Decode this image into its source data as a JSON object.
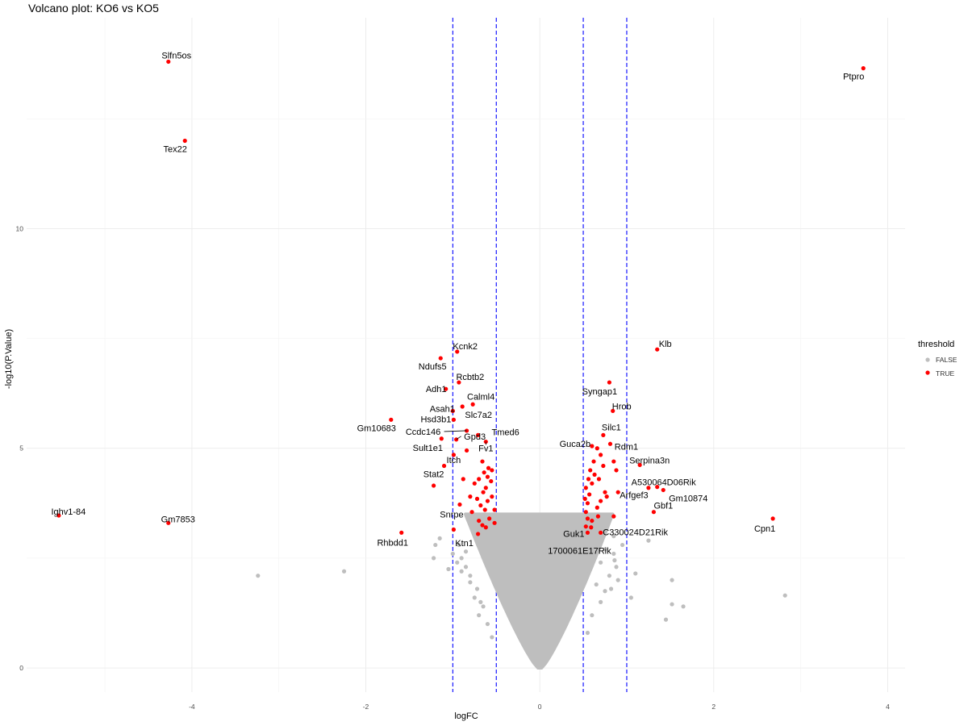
{
  "chart_data": {
    "type": "scatter",
    "title": "Volcano plot: KO6 vs KO5",
    "xlabel": "logFC",
    "ylabel": "-log10(P.Value)",
    "xlim": [
      -5.9,
      4.2
    ],
    "ylim": [
      -0.55,
      14.8
    ],
    "x_ticks": [
      -4,
      -2,
      0,
      2,
      4
    ],
    "y_ticks": [
      0,
      5,
      10
    ],
    "grid": true,
    "legend_position": "right",
    "legend": {
      "title": "threshold",
      "entries": [
        {
          "label": "FALSE",
          "color": "#bebebe"
        },
        {
          "label": "TRUE",
          "color": "#ff0000"
        }
      ]
    },
    "vlines": [
      {
        "x": -1.0,
        "color": "#0000ff",
        "style": "dashed"
      },
      {
        "x": -0.5,
        "color": "#0000ff",
        "style": "dashed"
      },
      {
        "x": 0.5,
        "color": "#0000ff",
        "style": "dashed"
      },
      {
        "x": 1.0,
        "color": "#0000ff",
        "style": "dashed"
      }
    ],
    "colors": {
      "significant": "#ff0000",
      "nonsignificant": "#bebebe",
      "threshold_lines": "#0000ff"
    },
    "significant_genes": [
      {
        "label": "Slfn5os",
        "x": -4.27,
        "y": 13.8
      },
      {
        "label": "Ptpro",
        "x": 3.72,
        "y": 13.65
      },
      {
        "label": "Tex22",
        "x": -4.08,
        "y": 12.0
      },
      {
        "label": "Klb",
        "x": 1.35,
        "y": 7.25
      },
      {
        "label": "Kcnk2",
        "x": -0.95,
        "y": 7.2
      },
      {
        "label": "Ndufs5",
        "x": -1.14,
        "y": 7.05
      },
      {
        "label": "Rcbtb2",
        "x": -0.93,
        "y": 6.5
      },
      {
        "label": "Adh1",
        "x": -1.08,
        "y": 6.35
      },
      {
        "label": "Syngap1",
        "x": 0.8,
        "y": 6.5
      },
      {
        "label": "Calml4",
        "x": -0.77,
        "y": 6.0
      },
      {
        "label": "Asah1",
        "x": -1.0,
        "y": 5.85
      },
      {
        "label": "Hrob",
        "x": 0.84,
        "y": 5.85
      },
      {
        "label": "Slc7a2",
        "x": -0.89,
        "y": 5.95
      },
      {
        "label": "Hsd3b1",
        "x": -0.99,
        "y": 5.65
      },
      {
        "label": "Gm10683",
        "x": -1.71,
        "y": 5.65
      },
      {
        "label": "Tmed6",
        "x": -0.71,
        "y": 5.3
      },
      {
        "label": "Ccdc146",
        "x": -0.84,
        "y": 5.4
      },
      {
        "label": "Silc1",
        "x": 0.73,
        "y": 5.3
      },
      {
        "label": "Gpd3",
        "x": -0.96,
        "y": 5.2
      },
      {
        "label": "Sult1e1",
        "x": -1.13,
        "y": 5.22
      },
      {
        "label": "Fv1",
        "x": -0.62,
        "y": 5.15
      },
      {
        "label": "Guca2b",
        "x": 0.6,
        "y": 5.05
      },
      {
        "label": "Rdm1",
        "x": 0.81,
        "y": 5.1
      },
      {
        "label": "Itch",
        "x": -0.99,
        "y": 4.85
      },
      {
        "label": "Stat2",
        "x": -1.1,
        "y": 4.6
      },
      {
        "label": "Serpina3n",
        "x": 1.15,
        "y": 4.62
      },
      {
        "label": "A530064D06Rik",
        "x": 1.35,
        "y": 4.12
      },
      {
        "label": "Arfgef3",
        "x": 1.25,
        "y": 4.1
      },
      {
        "label": "Gm10874",
        "x": 1.42,
        "y": 4.05
      },
      {
        "label": "Ighv1-84",
        "x": -5.53,
        "y": 3.47
      },
      {
        "label": "Gm7853",
        "x": -4.27,
        "y": 3.3
      },
      {
        "label": "Gbf1",
        "x": 1.31,
        "y": 3.55
      },
      {
        "label": "Snrpe",
        "x": -0.92,
        "y": 3.72
      },
      {
        "label": "Cpn1",
        "x": 2.68,
        "y": 3.4
      },
      {
        "label": "Rhbdd1",
        "x": -1.59,
        "y": 3.08
      },
      {
        "label": "Guk1",
        "x": 0.53,
        "y": 3.22
      },
      {
        "label": "C330024D21Rik",
        "x": 0.7,
        "y": 3.08
      },
      {
        "label": "Ktn1",
        "x": -0.71,
        "y": 3.05
      },
      {
        "label": "1700061E17Rik",
        "x": 0.55,
        "y": 3.08
      }
    ],
    "other_significant_points": [
      [
        -1.22,
        4.15
      ],
      [
        -0.99,
        3.15
      ],
      [
        -0.63,
        3.6
      ],
      [
        -0.6,
        3.8
      ],
      [
        -0.55,
        3.9
      ],
      [
        -0.65,
        4.0
      ],
      [
        -0.7,
        4.3
      ],
      [
        -0.6,
        4.35
      ],
      [
        -0.55,
        4.5
      ],
      [
        -0.62,
        4.1
      ],
      [
        -0.7,
        3.35
      ],
      [
        -0.78,
        3.55
      ],
      [
        -0.68,
        3.7
      ],
      [
        -0.58,
        3.4
      ],
      [
        -0.52,
        3.3
      ],
      [
        -0.66,
        3.25
      ],
      [
        -0.75,
        4.2
      ],
      [
        -0.8,
        3.9
      ],
      [
        -0.59,
        4.55
      ],
      [
        -0.64,
        4.45
      ],
      [
        -0.56,
        4.25
      ],
      [
        -0.72,
        3.85
      ],
      [
        -0.88,
        4.3
      ],
      [
        -0.84,
        4.95
      ],
      [
        -0.66,
        4.7
      ],
      [
        -0.62,
        3.2
      ],
      [
        -0.52,
        3.6
      ],
      [
        0.53,
        3.55
      ],
      [
        0.55,
        3.75
      ],
      [
        0.57,
        3.95
      ],
      [
        0.6,
        4.2
      ],
      [
        0.63,
        4.4
      ],
      [
        0.66,
        3.65
      ],
      [
        0.7,
        3.8
      ],
      [
        0.75,
        4.0
      ],
      [
        0.58,
        4.5
      ],
      [
        0.62,
        4.7
      ],
      [
        0.7,
        4.85
      ],
      [
        0.66,
        5.0
      ],
      [
        0.55,
        3.4
      ],
      [
        0.6,
        3.35
      ],
      [
        0.67,
        3.45
      ],
      [
        0.77,
        3.9
      ],
      [
        0.85,
        3.45
      ],
      [
        0.9,
        4.0
      ],
      [
        0.85,
        4.7
      ],
      [
        0.88,
        4.5
      ],
      [
        0.56,
        4.3
      ],
      [
        0.53,
        4.1
      ],
      [
        0.59,
        3.2
      ],
      [
        0.73,
        4.6
      ],
      [
        0.68,
        4.3
      ],
      [
        0.52,
        3.85
      ]
    ],
    "nonsignificant_points": [
      [
        -3.24,
        2.1
      ],
      [
        -2.25,
        2.2
      ],
      [
        -1.2,
        2.8
      ],
      [
        -1.22,
        2.5
      ],
      [
        -1.15,
        2.95
      ],
      [
        -1.0,
        2.6
      ],
      [
        -0.93,
        2.8
      ],
      [
        -0.9,
        2.5
      ],
      [
        -0.85,
        2.3
      ],
      [
        -0.8,
        2.1
      ],
      [
        -0.9,
        2.2
      ],
      [
        -0.75,
        1.6
      ],
      [
        -0.65,
        1.4
      ],
      [
        -0.7,
        1.2
      ],
      [
        -0.8,
        1.95
      ],
      [
        -0.85,
        2.65
      ],
      [
        -0.95,
        2.4
      ],
      [
        -1.05,
        2.25
      ],
      [
        -0.6,
        1.0
      ],
      [
        -0.68,
        1.5
      ],
      [
        -0.72,
        1.8
      ],
      [
        -0.62,
        2.9
      ],
      [
        -0.66,
        2.6
      ],
      [
        -0.58,
        2.4
      ],
      [
        -0.55,
        2.75
      ],
      [
        0.7,
        2.4
      ],
      [
        0.8,
        2.1
      ],
      [
        0.85,
        2.6
      ],
      [
        0.9,
        2.0
      ],
      [
        0.95,
        2.8
      ],
      [
        0.82,
        1.8
      ],
      [
        0.7,
        1.5
      ],
      [
        0.6,
        1.2
      ],
      [
        0.75,
        2.7
      ],
      [
        0.62,
        2.9
      ],
      [
        0.88,
        2.3
      ],
      [
        0.65,
        1.9
      ],
      [
        0.85,
        3.0
      ],
      [
        0.86,
        2.45
      ],
      [
        0.75,
        1.75
      ],
      [
        1.25,
        2.9
      ],
      [
        1.1,
        2.15
      ],
      [
        1.05,
        1.6
      ],
      [
        1.45,
        1.1
      ],
      [
        1.52,
        2.0
      ],
      [
        1.52,
        1.45
      ],
      [
        1.65,
        1.4
      ],
      [
        2.82,
        1.65
      ],
      [
        0.55,
        0.8
      ],
      [
        -0.55,
        0.7
      ]
    ]
  }
}
